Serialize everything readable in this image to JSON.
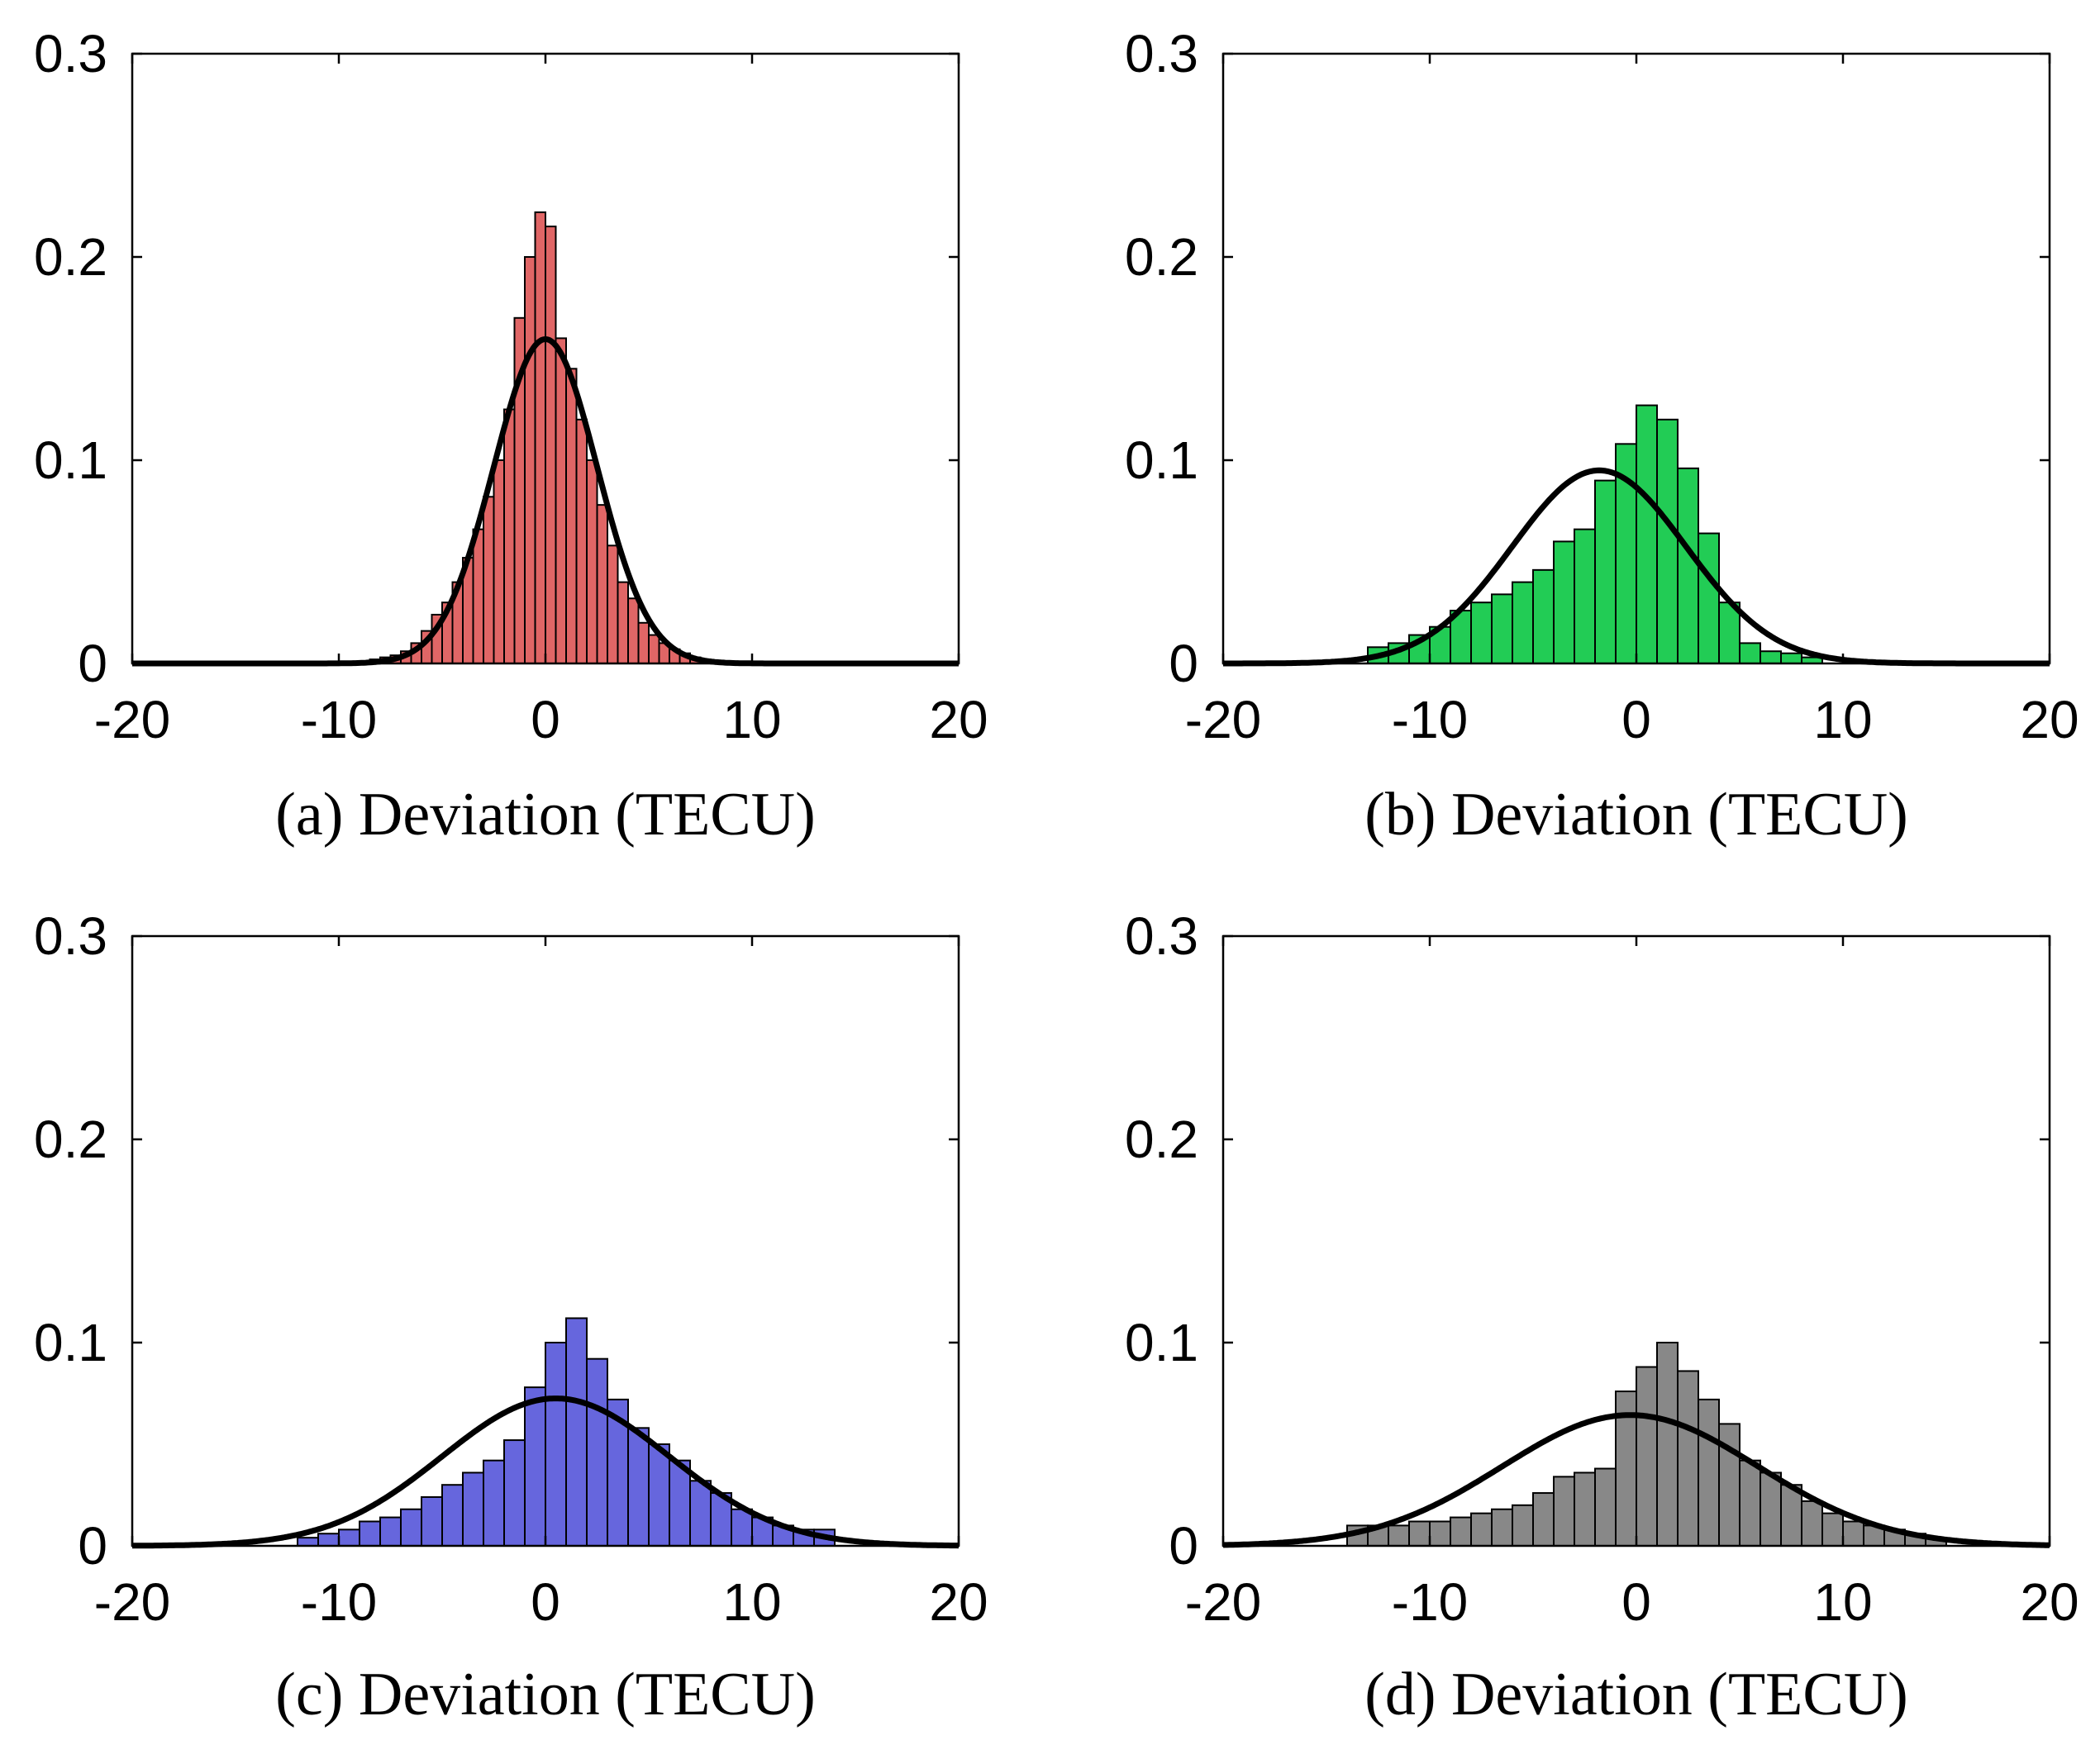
{
  "chart_data": [
    {
      "panel": "a",
      "type": "bar",
      "xlabel": "(a) Deviation (TECU)",
      "ylabel": "",
      "xlim": [
        -20,
        20
      ],
      "ylim": [
        0,
        0.3
      ],
      "xticks": [
        -20,
        -10,
        0,
        10,
        20
      ],
      "yticks": [
        0,
        0.1,
        0.2,
        0.3
      ],
      "grid": false,
      "bar_color": "#e06666",
      "bin_width": 0.5,
      "bin_centers": [
        -8.75,
        -8.25,
        -7.75,
        -7.25,
        -6.75,
        -6.25,
        -5.75,
        -5.25,
        -4.75,
        -4.25,
        -3.75,
        -3.25,
        -2.75,
        -2.25,
        -1.75,
        -1.25,
        -0.75,
        -0.25,
        0.25,
        0.75,
        1.25,
        1.75,
        2.25,
        2.75,
        3.25,
        3.75,
        4.25,
        4.75,
        5.25,
        5.75,
        6.25,
        6.75,
        7.25,
        7.75,
        8.25,
        8.75
      ],
      "values": [
        0.001,
        0.002,
        0.003,
        0.004,
        0.006,
        0.01,
        0.016,
        0.024,
        0.03,
        0.04,
        0.052,
        0.066,
        0.082,
        0.1,
        0.125,
        0.17,
        0.2,
        0.222,
        0.215,
        0.16,
        0.145,
        0.12,
        0.1,
        0.078,
        0.058,
        0.04,
        0.032,
        0.02,
        0.014,
        0.01,
        0.007,
        0.005,
        0.003,
        0.002,
        0.001,
        0.001
      ],
      "fit": {
        "type": "normal",
        "mean": 0.0,
        "std": 2.5,
        "scale": 1.0
      }
    },
    {
      "panel": "b",
      "type": "bar",
      "xlabel": "(b) Deviation (TECU)",
      "ylabel": "",
      "xlim": [
        -20,
        20
      ],
      "ylim": [
        0,
        0.3
      ],
      "xticks": [
        -20,
        -10,
        0,
        10,
        20
      ],
      "yticks": [
        0,
        0.1,
        0.2,
        0.3
      ],
      "grid": false,
      "bar_color": "#22cc55",
      "bin_width": 1,
      "bin_centers": [
        -12.5,
        -11.5,
        -10.5,
        -9.5,
        -8.5,
        -7.5,
        -6.5,
        -5.5,
        -4.5,
        -3.5,
        -2.5,
        -1.5,
        -0.5,
        0.5,
        1.5,
        2.5,
        3.5,
        4.5,
        5.5,
        6.5,
        7.5,
        8.5
      ],
      "values": [
        0.008,
        0.01,
        0.014,
        0.018,
        0.026,
        0.03,
        0.034,
        0.04,
        0.046,
        0.06,
        0.066,
        0.09,
        0.108,
        0.127,
        0.12,
        0.096,
        0.064,
        0.03,
        0.01,
        0.006,
        0.005,
        0.003
      ],
      "fit": {
        "type": "normal",
        "mean": -1.8,
        "std": 4.2,
        "scale": 1.0
      }
    },
    {
      "panel": "c",
      "type": "bar",
      "xlabel": "(c) Deviation (TECU)",
      "ylabel": "",
      "xlim": [
        -20,
        20
      ],
      "ylim": [
        0,
        0.3
      ],
      "xticks": [
        -20,
        -10,
        0,
        10,
        20
      ],
      "yticks": [
        0,
        0.1,
        0.2,
        0.3
      ],
      "grid": false,
      "bar_color": "#6666dd",
      "bin_width": 1,
      "bin_centers": [
        -11.5,
        -10.5,
        -9.5,
        -8.5,
        -7.5,
        -6.5,
        -5.5,
        -4.5,
        -3.5,
        -2.5,
        -1.5,
        -0.5,
        0.5,
        1.5,
        2.5,
        3.5,
        4.5,
        5.5,
        6.5,
        7.5,
        8.5,
        9.5,
        10.5,
        11.5,
        12.5,
        13.5
      ],
      "values": [
        0.004,
        0.006,
        0.008,
        0.012,
        0.014,
        0.018,
        0.024,
        0.03,
        0.036,
        0.042,
        0.052,
        0.078,
        0.1,
        0.112,
        0.092,
        0.072,
        0.058,
        0.05,
        0.042,
        0.032,
        0.026,
        0.018,
        0.014,
        0.01,
        0.008,
        0.008
      ],
      "fit": {
        "type": "normal",
        "mean": 0.5,
        "std": 5.5,
        "scale": 1.0
      }
    },
    {
      "panel": "d",
      "type": "bar",
      "xlabel": "(d) Deviation (TECU)",
      "ylabel": "",
      "xlim": [
        -20,
        20
      ],
      "ylim": [
        0,
        0.3
      ],
      "xticks": [
        -20,
        -10,
        0,
        10,
        20
      ],
      "yticks": [
        0,
        0.1,
        0.2,
        0.3
      ],
      "grid": false,
      "bar_color": "#888888",
      "bin_width": 1,
      "bin_centers": [
        -13.5,
        -12.5,
        -11.5,
        -10.5,
        -9.5,
        -8.5,
        -7.5,
        -6.5,
        -5.5,
        -4.5,
        -3.5,
        -2.5,
        -1.5,
        -0.5,
        0.5,
        1.5,
        2.5,
        3.5,
        4.5,
        5.5,
        6.5,
        7.5,
        8.5,
        9.5,
        10.5,
        11.5,
        12.5,
        13.5,
        14.5
      ],
      "values": [
        0.01,
        0.01,
        0.01,
        0.012,
        0.012,
        0.014,
        0.016,
        0.018,
        0.02,
        0.026,
        0.034,
        0.036,
        0.038,
        0.076,
        0.088,
        0.1,
        0.086,
        0.072,
        0.06,
        0.042,
        0.036,
        0.03,
        0.022,
        0.016,
        0.012,
        0.01,
        0.008,
        0.006,
        0.004
      ],
      "fit": {
        "type": "normal",
        "mean": -0.3,
        "std": 6.2,
        "scale": 1.0
      }
    }
  ],
  "colors": {
    "fit_line": "#000000",
    "bar_edge": "#000000",
    "axis": "#000000"
  }
}
